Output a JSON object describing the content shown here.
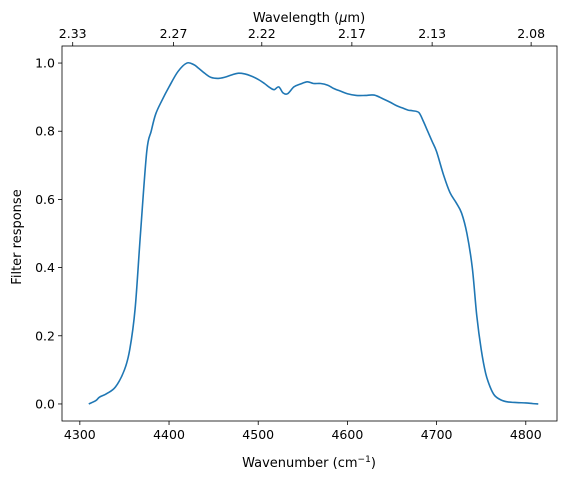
{
  "chart_data": {
    "type": "line",
    "xlabel": "Wavenumber (cm",
    "xlabel_sup": "−1",
    "xlabel_end": ")",
    "ylabel": "Filter response",
    "top_xlabel_prefix": "Wavelength (",
    "top_xlabel_mu": "μ",
    "top_xlabel_suffix": "m)",
    "xlim": [
      4280,
      4835
    ],
    "ylim": [
      -0.05,
      1.05
    ],
    "xticks": [
      4300,
      4400,
      4500,
      4600,
      4700,
      4800
    ],
    "yticks": [
      0.0,
      0.2,
      0.4,
      0.6,
      0.8,
      1.0
    ],
    "top_ticks": [
      {
        "label": "2.33",
        "x": 4292
      },
      {
        "label": "2.27",
        "x": 4405
      },
      {
        "label": "2.22",
        "x": 4504
      },
      {
        "label": "2.17",
        "x": 4605
      },
      {
        "label": "2.13",
        "x": 4695
      },
      {
        "label": "2.08",
        "x": 4806
      }
    ],
    "line_color": "#1f77b4",
    "grid": false,
    "series": [
      {
        "x": [
          4310,
          4318,
          4322,
          4330,
          4340,
          4350,
          4356,
          4362,
          4368,
          4375,
          4380,
          4385,
          4392,
          4400,
          4410,
          4420,
          4428,
          4433,
          4440,
          4447,
          4455,
          4462,
          4470,
          4477,
          4485,
          4492,
          4500,
          4507,
          4513,
          4518,
          4523,
          4528,
          4533,
          4540,
          4547,
          4555,
          4562,
          4570,
          4578,
          4585,
          4593,
          4600,
          4610,
          4620,
          4630,
          4640,
          4648,
          4655,
          4662,
          4668,
          4673,
          4680,
          4685,
          4690,
          4695,
          4700,
          4708,
          4715,
          4722,
          4728,
          4734,
          4740,
          4745,
          4750,
          4755,
          4760,
          4765,
          4772,
          4780,
          4790,
          4800,
          4808,
          4814
        ],
        "y": [
          0.0,
          0.01,
          0.02,
          0.03,
          0.05,
          0.1,
          0.16,
          0.28,
          0.5,
          0.74,
          0.8,
          0.85,
          0.89,
          0.93,
          0.975,
          1.0,
          0.995,
          0.985,
          0.97,
          0.958,
          0.955,
          0.958,
          0.965,
          0.97,
          0.968,
          0.962,
          0.952,
          0.94,
          0.928,
          0.922,
          0.93,
          0.912,
          0.91,
          0.93,
          0.938,
          0.945,
          0.94,
          0.94,
          0.935,
          0.925,
          0.917,
          0.91,
          0.905,
          0.905,
          0.906,
          0.895,
          0.885,
          0.875,
          0.868,
          0.862,
          0.86,
          0.855,
          0.83,
          0.8,
          0.77,
          0.74,
          0.67,
          0.62,
          0.59,
          0.56,
          0.5,
          0.4,
          0.26,
          0.16,
          0.09,
          0.05,
          0.025,
          0.012,
          0.006,
          0.004,
          0.003,
          0.001,
          0.0
        ]
      }
    ]
  }
}
